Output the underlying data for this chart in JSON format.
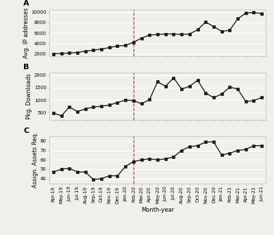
{
  "x_labels": [
    "Apr-19",
    "May-19",
    "Jun-19",
    "Jul-19",
    "Aug-19",
    "Sep-19",
    "Oct-19",
    "Nov-19",
    "Dec-19",
    "Jan-20",
    "Feb-20",
    "Mar-20",
    "Apr-20",
    "May-20",
    "Jun-20",
    "Jul-20",
    "Aug-20",
    "Sep-20",
    "Oct-20",
    "Nov-20",
    "Dec-20",
    "Jan-21",
    "Feb-21",
    "Mar-21",
    "Apr-21",
    "May-21",
    "Jun-21"
  ],
  "vline_pos": 10,
  "panel_A": {
    "label": "A",
    "ylabel": "Avg. IP addresses",
    "data": [
      2000,
      2050,
      2150,
      2250,
      2500,
      2700,
      2900,
      3200,
      3500,
      3600,
      4200,
      5000,
      5600,
      5700,
      5800,
      5800,
      5700,
      5800,
      6600,
      8100,
      7200,
      6300,
      6500,
      8700,
      9800,
      9900,
      9700
    ],
    "yticks": [
      2000,
      4000,
      6000,
      8000,
      10000
    ],
    "ylim": [
      1500,
      10500
    ]
  },
  "panel_B": {
    "label": "B",
    "ylabel": "Pkg. Downloads",
    "data": [
      480,
      360,
      720,
      540,
      640,
      720,
      750,
      800,
      900,
      1000,
      980,
      850,
      1020,
      1740,
      1560,
      1900,
      1440,
      1560,
      1800,
      1280,
      1100,
      1240,
      1520,
      1450,
      940,
      980,
      1100
    ],
    "yticks": [
      500,
      1000,
      1500,
      2000
    ],
    "ylim": [
      200,
      2100
    ]
  },
  "panel_C": {
    "label": "C",
    "ylabel": "Assign. Assets Req.",
    "data": [
      47,
      50,
      51,
      47,
      47,
      39,
      40,
      43,
      43,
      53,
      58,
      60,
      61,
      60,
      61,
      63,
      70,
      74,
      75,
      79,
      79,
      65,
      67,
      70,
      71,
      75,
      75
    ],
    "yticks": [
      40,
      50,
      60,
      70,
      80
    ],
    "ylim": [
      35,
      85
    ]
  },
  "line_color": "#1a1a1a",
  "marker": "s",
  "markersize": 2.5,
  "linewidth": 1.0,
  "vline_color": "#cc3333",
  "vline_style": "--",
  "xlabel": "Month-year",
  "bg_color": "#f0f0eb",
  "plot_bg_color": "#f0f0eb",
  "grid_color": "#ffffff",
  "tick_label_fontsize": 5.0,
  "axis_label_fontsize": 6.0,
  "panel_label_fontsize": 8.0
}
